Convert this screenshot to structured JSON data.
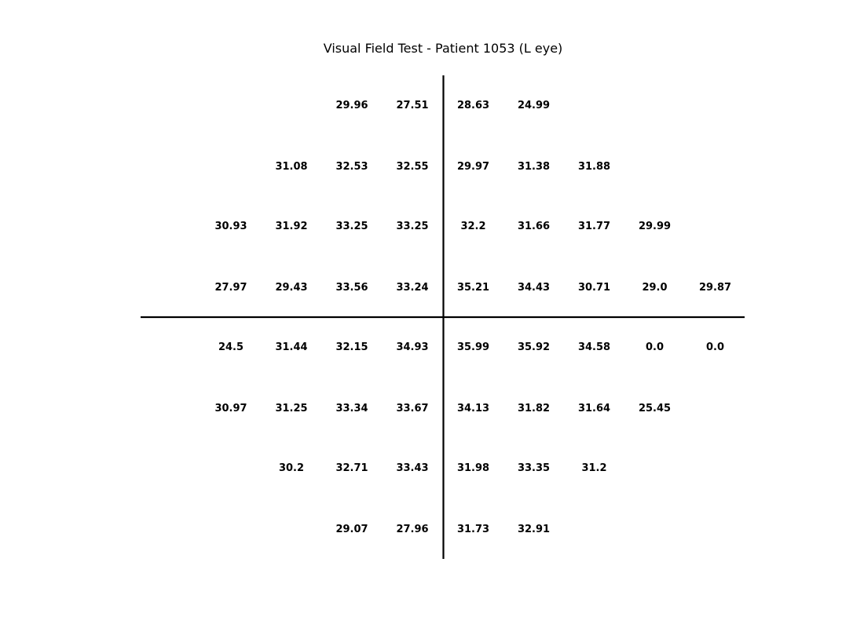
{
  "chart_data": {
    "type": "table",
    "title": "Visual Field Test - Patient 1053 (L eye)",
    "eye": "L",
    "x_positions": [
      -4,
      -3,
      -2,
      -1,
      1,
      2,
      3,
      4,
      5
    ],
    "y_positions": [
      4,
      3,
      2,
      1,
      -1,
      -2,
      -3,
      -4
    ],
    "rows": [
      [
        null,
        null,
        29.96,
        27.51,
        28.63,
        24.99,
        null,
        null,
        null
      ],
      [
        null,
        31.08,
        32.53,
        32.55,
        29.97,
        31.38,
        31.88,
        null,
        null
      ],
      [
        30.93,
        31.92,
        33.25,
        33.25,
        32.2,
        31.66,
        31.77,
        29.99,
        null
      ],
      [
        27.97,
        29.43,
        33.56,
        33.24,
        35.21,
        34.43,
        30.71,
        29.0,
        29.87
      ],
      [
        24.5,
        31.44,
        32.15,
        34.93,
        35.99,
        35.92,
        34.58,
        0.0,
        0.0
      ],
      [
        30.97,
        31.25,
        33.34,
        33.67,
        34.13,
        31.82,
        31.64,
        25.45,
        null
      ],
      [
        null,
        30.2,
        32.71,
        33.43,
        31.98,
        33.35,
        31.2,
        null,
        null
      ],
      [
        null,
        null,
        29.07,
        27.96,
        31.73,
        32.91,
        null,
        null,
        null
      ]
    ],
    "grid": false,
    "axes_cross_at_origin": true
  }
}
